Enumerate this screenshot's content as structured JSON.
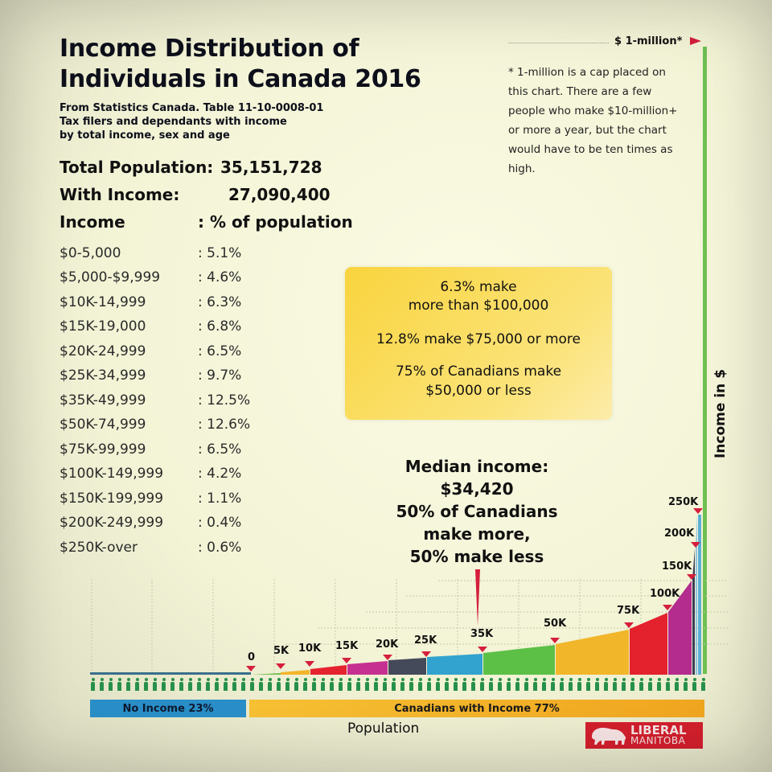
{
  "title": {
    "line1": "Income Distribution of",
    "line2": "Individuals in Canada 2016"
  },
  "subtitle": {
    "line1": "From Statistics Canada. Table 11-10-0008-01",
    "line2": "Tax filers and dependants with income",
    "line3": "by total income, sex and age"
  },
  "stats": {
    "total_population_label": "Total Population:",
    "total_population_value": "35,151,728",
    "with_income_label": "With Income:",
    "with_income_value": "27,090,400",
    "income_header": "Income",
    "pct_header": ": % of population"
  },
  "distribution": [
    {
      "range": "$0-5,000",
      "pct": ": 5.1%"
    },
    {
      "range": "$5,000-$9,999",
      "pct": ": 4.6%"
    },
    {
      "range": "$10K-14,999",
      "pct": ": 6.3%"
    },
    {
      "range": "$15K-19,000",
      "pct": ": 6.8%"
    },
    {
      "range": "$20K-24,999",
      "pct": ": 6.5%"
    },
    {
      "range": "$25K-34,999",
      "pct": ": 9.7%"
    },
    {
      "range": "$35K-49,999",
      "pct": ": 12.5%"
    },
    {
      "range": "$50K-74,999",
      "pct": ": 12.6%"
    },
    {
      "range": "$75K-99,999",
      "pct": ": 6.5%"
    },
    {
      "range": "$100K-149,999",
      "pct": ": 4.2%"
    },
    {
      "range": "$150K-199,999",
      "pct": ": 1.1%"
    },
    {
      "range": "$200K-249,999",
      "pct": ": 0.4%"
    },
    {
      "range": "$250K-over",
      "pct": ": 0.6%"
    }
  ],
  "cap": {
    "label": "$ 1-million*",
    "note": "* 1-million is a cap placed on this chart. There are a few people who make $10-million+ or more a year, but the chart would have to be ten times as high."
  },
  "callout": {
    "line1a": "6.3% make",
    "line1b": "more than $100,000",
    "line2": "12.8% make $75,000 or more",
    "line3a": "75% of Canadians make",
    "line3b": "$50,000 or less"
  },
  "median": {
    "line1": "Median income:",
    "line2": "$34,420",
    "line3": "50% of Canadians",
    "line4": "make more,",
    "line5": "50% make less"
  },
  "axes": {
    "ylabel": "Income in $",
    "xlabel": "Population",
    "no_income_label": "No Income 23%",
    "with_income_label": "Canadians with Income 77%"
  },
  "tick_labels": [
    "0",
    "5K",
    "10K",
    "15K",
    "20K",
    "25K",
    "35K",
    "50K",
    "75K",
    "100K",
    "150K",
    "200K",
    "250K"
  ],
  "logo": {
    "line1": "LIBERAL",
    "line2": "MANITOBA"
  },
  "colors": {
    "accent_red": "#d51f3c",
    "axis_green": "#6fc153",
    "no_income_blue": "#2a8fc8",
    "with_income_orange": "#f4b02a",
    "callout_yellow": "#f9d43d",
    "segments": [
      "#6cbf4a",
      "#f4b52c",
      "#e5232f",
      "#c63191",
      "#454a5a",
      "#32a3cf",
      "#5cc047",
      "#f2b62a",
      "#e3222e",
      "#b42c8e",
      "#3b3d55",
      "#8fc3e0",
      "#6fc153"
    ]
  },
  "chart_data": {
    "type": "area",
    "title": "Income Distribution of Individuals in Canada 2016",
    "subtitle": "From Statistics Canada. Table 11-10-0008-01",
    "xlabel": "Population",
    "ylabel": "Income in $",
    "categories": [
      "$0-5,000",
      "$5,000-$9,999",
      "$10K-14,999",
      "$15K-19,000",
      "$20K-24,999",
      "$25K-34,999",
      "$35K-49,999",
      "$50K-74,999",
      "$75K-99,999",
      "$100K-149,999",
      "$150K-199,999",
      "$200K-249,999",
      "$250K-over"
    ],
    "values": [
      5.1,
      4.6,
      6.3,
      6.8,
      6.5,
      9.7,
      12.5,
      12.6,
      6.5,
      4.2,
      1.1,
      0.4,
      0.6
    ],
    "value_unit": "% of population",
    "no_income_pct": 23,
    "with_income_pct": 77,
    "income_ticks": [
      "0",
      "5K",
      "10K",
      "15K",
      "20K",
      "25K",
      "35K",
      "50K",
      "75K",
      "100K",
      "150K",
      "200K",
      "250K",
      "$ 1-million*"
    ],
    "ylim": [
      0,
      1000000
    ],
    "median_income": 34420,
    "annotations": [
      "6.3% make more than $100,000",
      "12.8% make $75,000 or more",
      "75% of Canadians make $50,000 or less",
      "Median income: $34,420 — 50% of Canadians make more, 50% make less"
    ],
    "grid": true,
    "legend": "none"
  }
}
